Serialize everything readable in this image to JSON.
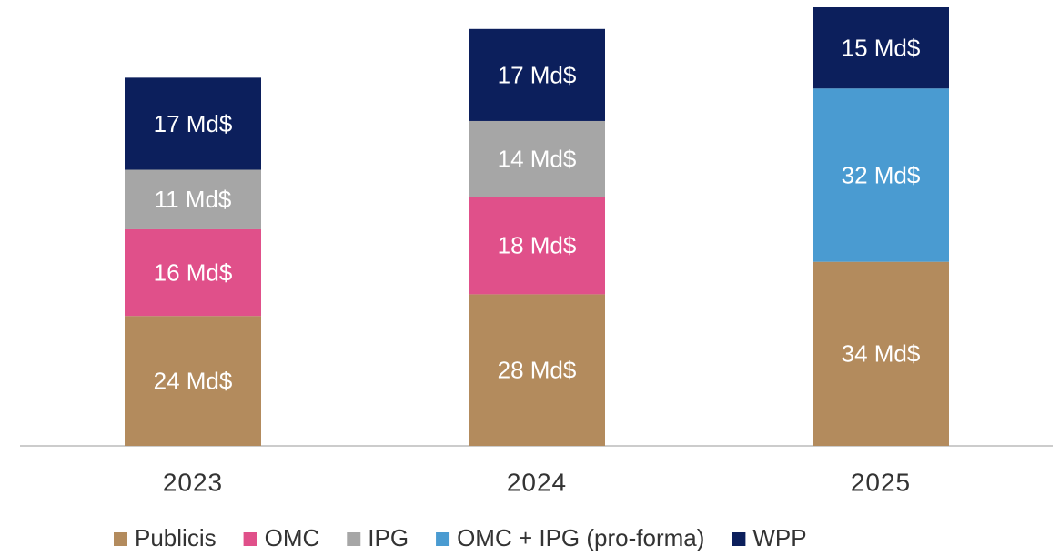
{
  "chart_data": {
    "type": "stacked_bar",
    "categories": [
      "2023",
      "2024",
      "2025"
    ],
    "series": [
      {
        "name": "Publicis",
        "color": "#b38b5d",
        "values": [
          24,
          28,
          34
        ],
        "value_labels": [
          "24 Md$",
          "28 Md$",
          "34 Md$"
        ]
      },
      {
        "name": "OMC",
        "color": "#e0508a",
        "values": [
          16,
          18,
          null
        ],
        "value_labels": [
          "16 Md$",
          "18 Md$",
          null
        ]
      },
      {
        "name": "IPG",
        "color": "#a6a6a6",
        "values": [
          11,
          14,
          null
        ],
        "value_labels": [
          "11 Md$",
          "14 Md$",
          null
        ]
      },
      {
        "name": "OMC + IPG (pro-forma)",
        "color": "#4a9bd1",
        "values": [
          null,
          null,
          32
        ],
        "value_labels": [
          null,
          null,
          "32 Md$"
        ]
      },
      {
        "name": "WPP",
        "color": "#0c1f5c",
        "values": [
          17,
          17,
          15
        ],
        "value_labels": [
          "17 Md$",
          "17 Md$",
          "15 Md$"
        ]
      }
    ],
    "legend": "bottom"
  }
}
